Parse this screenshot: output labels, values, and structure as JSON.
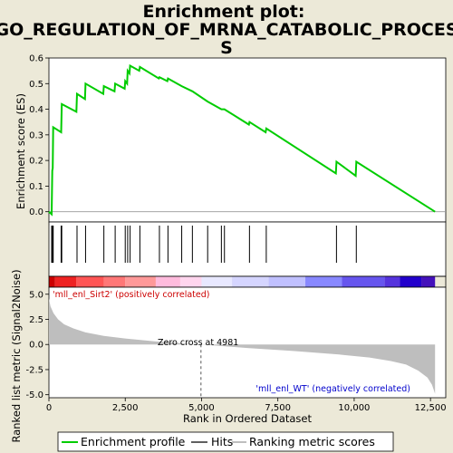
{
  "title_line1": "Enrichment plot:",
  "title_line2": "GO_REGULATION_OF_MRNA_CATABOLIC_PROCES",
  "title_line3": "S",
  "legend": {
    "profile": "Enrichment profile",
    "hits": "Hits",
    "ranking": "Ranking metric scores",
    "profile_color": "#00cc00",
    "hits_color": "#000000",
    "ranking_color": "#bebebe"
  },
  "chart_data": {
    "type": "line",
    "xlabel": "Rank in Ordered Dataset",
    "xlim": [
      0,
      13000
    ],
    "x_ticks": [
      0,
      2500,
      5000,
      7500,
      10000,
      12500
    ],
    "x_tick_labels": [
      "0",
      "2,500",
      "5,000",
      "7,500",
      "10,000",
      "12,500"
    ],
    "es_panel": {
      "ylabel": "Enrichment score (ES)",
      "ylim": [
        -0.04,
        0.6
      ],
      "y_ticks": [
        0.0,
        0.1,
        0.2,
        0.3,
        0.4,
        0.5,
        0.6
      ],
      "y_tick_labels": [
        "0.0",
        "0.1",
        "0.2",
        "0.3",
        "0.4",
        "0.5",
        "0.6"
      ],
      "series": [
        {
          "x": [
            0,
            90,
            110,
            125,
            140,
            400,
            420,
            900,
            920,
            1180,
            1200,
            1780,
            1800,
            2150,
            2170,
            2480,
            2500,
            2560,
            2580,
            2640,
            2660,
            2960,
            2980,
            3600,
            3620,
            3880,
            3900,
            4350,
            4700,
            5200,
            5650,
            5750,
            6550,
            6570,
            7100,
            7120,
            9400,
            9420,
            10050,
            10070,
            12650
          ],
          "y": [
            0.0,
            -0.01,
            0.16,
            0.17,
            0.33,
            0.31,
            0.42,
            0.39,
            0.46,
            0.44,
            0.5,
            0.46,
            0.49,
            0.47,
            0.5,
            0.48,
            0.51,
            0.5,
            0.55,
            0.54,
            0.57,
            0.55,
            0.565,
            0.52,
            0.525,
            0.51,
            0.52,
            0.49,
            0.47,
            0.43,
            0.4,
            0.4,
            0.34,
            0.35,
            0.31,
            0.325,
            0.15,
            0.195,
            0.14,
            0.195,
            0.0
          ]
        }
      ]
    },
    "hits": [
      90,
      110,
      125,
      140,
      400,
      420,
      920,
      1200,
      1800,
      2170,
      2500,
      2580,
      2660,
      2980,
      3620,
      3900,
      4350,
      4700,
      5200,
      5650,
      5750,
      6570,
      7120,
      9420,
      10070
    ],
    "color_bar": [
      {
        "from": 0,
        "to": 200,
        "color": "#cc0000"
      },
      {
        "from": 200,
        "to": 900,
        "color": "#ee2222"
      },
      {
        "from": 900,
        "to": 1800,
        "color": "#ff5555"
      },
      {
        "from": 1800,
        "to": 2500,
        "color": "#ff7777"
      },
      {
        "from": 2500,
        "to": 3500,
        "color": "#ff9999"
      },
      {
        "from": 3500,
        "to": 4300,
        "color": "#ffbbdd"
      },
      {
        "from": 4300,
        "to": 5000,
        "color": "#ffd5ee"
      },
      {
        "from": 5000,
        "to": 6000,
        "color": "#e8e8ff"
      },
      {
        "from": 6000,
        "to": 7200,
        "color": "#d5d5ff"
      },
      {
        "from": 7200,
        "to": 8400,
        "color": "#c0c0ff"
      },
      {
        "from": 8400,
        "to": 9600,
        "color": "#8888ff"
      },
      {
        "from": 9600,
        "to": 11000,
        "color": "#6655ee"
      },
      {
        "from": 11000,
        "to": 11500,
        "color": "#5533dd"
      },
      {
        "from": 11500,
        "to": 12200,
        "color": "#2200cc"
      },
      {
        "from": 12200,
        "to": 12650,
        "color": "#4411bb"
      }
    ],
    "rank_panel": {
      "ylabel": "Ranked list metric (Signal2Noise)",
      "ylim": [
        -5.3,
        5.7
      ],
      "y_ticks": [
        5.0,
        2.5,
        0.0,
        -2.5,
        -5.0
      ],
      "y_tick_labels": [
        "5.0",
        "2.5",
        "0.0",
        "-2.5",
        "-5.0"
      ],
      "x": [
        0,
        50,
        150,
        300,
        500,
        800,
        1200,
        1800,
        2500,
        3500,
        4981,
        6500,
        8000,
        9500,
        10500,
        11200,
        11700,
        12100,
        12400,
        12550,
        12650
      ],
      "y": [
        4.6,
        3.8,
        3.1,
        2.5,
        2.0,
        1.6,
        1.2,
        0.85,
        0.6,
        0.3,
        0.0,
        -0.35,
        -0.65,
        -1.0,
        -1.3,
        -1.65,
        -2.0,
        -2.6,
        -3.3,
        -4.0,
        -4.9
      ]
    },
    "annotations": {
      "pos_label": "'mll_enl_Sirt2' (positively correlated)",
      "neg_label": "'mll_enl_WT' (negatively correlated)",
      "zero_cross": "Zero cross at 4981",
      "zero_cross_x": 4981,
      "pos_color": "#cc0000",
      "neg_color": "#0000cc"
    }
  }
}
